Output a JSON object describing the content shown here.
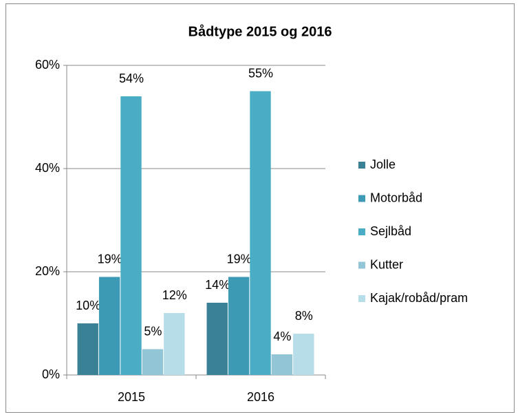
{
  "chart_data": {
    "type": "bar",
    "title": "Bådtype 2015 og 2016",
    "categories": [
      "2015",
      "2016"
    ],
    "series": [
      {
        "name": "Jolle",
        "color": "#3a8196",
        "values": [
          10,
          14
        ],
        "value_labels": [
          "10%",
          "14%"
        ]
      },
      {
        "name": "Motorbåd",
        "color": "#3c9ab4",
        "values": [
          19,
          19
        ],
        "value_labels": [
          "19%",
          "19%"
        ]
      },
      {
        "name": "Sejlbåd",
        "color": "#4bacc6",
        "values": [
          54,
          55
        ],
        "value_labels": [
          "54%",
          "55%"
        ]
      },
      {
        "name": "Kutter",
        "color": "#92c5d6",
        "values": [
          5,
          4
        ],
        "value_labels": [
          "5%",
          "4%"
        ]
      },
      {
        "name": "Kajak/robåd/pram",
        "color": "#b7dde8",
        "values": [
          12,
          8
        ],
        "value_labels": [
          "12%",
          "8%"
        ]
      }
    ],
    "ylim": [
      0,
      60
    ],
    "yticks": [
      {
        "value": 0,
        "label": "0%"
      },
      {
        "value": 20,
        "label": "20%"
      },
      {
        "value": 40,
        "label": "40%"
      },
      {
        "value": 60,
        "label": "60%"
      }
    ],
    "grid": true,
    "legend": "right"
  }
}
